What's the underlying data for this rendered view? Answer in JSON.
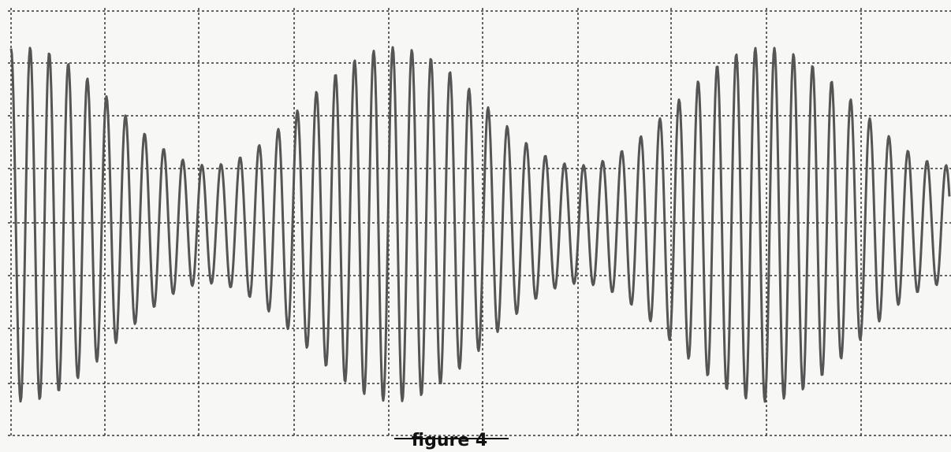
{
  "caption": "figure 4"
}
